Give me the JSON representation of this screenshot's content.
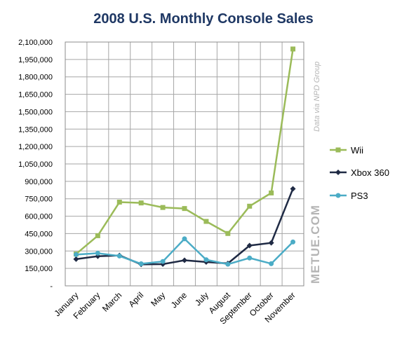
{
  "chart_data": {
    "type": "line",
    "title": "2008 U.S. Monthly Console Sales",
    "xlabel": "",
    "ylabel": "",
    "categories": [
      "January",
      "February",
      "March",
      "April",
      "May",
      "June",
      "July",
      "August",
      "September",
      "October",
      "November"
    ],
    "ylim": [
      0,
      2100000
    ],
    "ytick_values": [
      0,
      150000,
      300000,
      450000,
      600000,
      750000,
      900000,
      1050000,
      1200000,
      1350000,
      1500000,
      1650000,
      1800000,
      1950000,
      2100000
    ],
    "ytick_labels": [
      "-",
      "150,000",
      "300,000",
      "450,000",
      "600,000",
      "750,000",
      "900,000",
      "1,050,000",
      "1,200,000",
      "1,350,000",
      "1,500,000",
      "1,650,000",
      "1,800,000",
      "1,950,000",
      "2,100,000"
    ],
    "grid": true,
    "legend_position": "right",
    "series": [
      {
        "name": "Wii",
        "color": "#9bbb59",
        "marker": "square",
        "values": [
          274000,
          432000,
          721000,
          714000,
          675000,
          666000,
          555000,
          451000,
          686000,
          800000,
          2040000
        ]
      },
      {
        "name": "Xbox 360",
        "color": "#1f2a44",
        "marker": "diamond",
        "values": [
          230000,
          255000,
          262000,
          185000,
          187000,
          220000,
          205000,
          193000,
          347000,
          370000,
          836000
        ]
      },
      {
        "name": "PS3",
        "color": "#4bacc6",
        "marker": "circle",
        "values": [
          269000,
          281000,
          257000,
          190000,
          210000,
          405000,
          225000,
          186000,
          240000,
          191000,
          378000
        ]
      }
    ]
  },
  "watermark": "METUE.COM",
  "credit": "Data via NPD Group"
}
